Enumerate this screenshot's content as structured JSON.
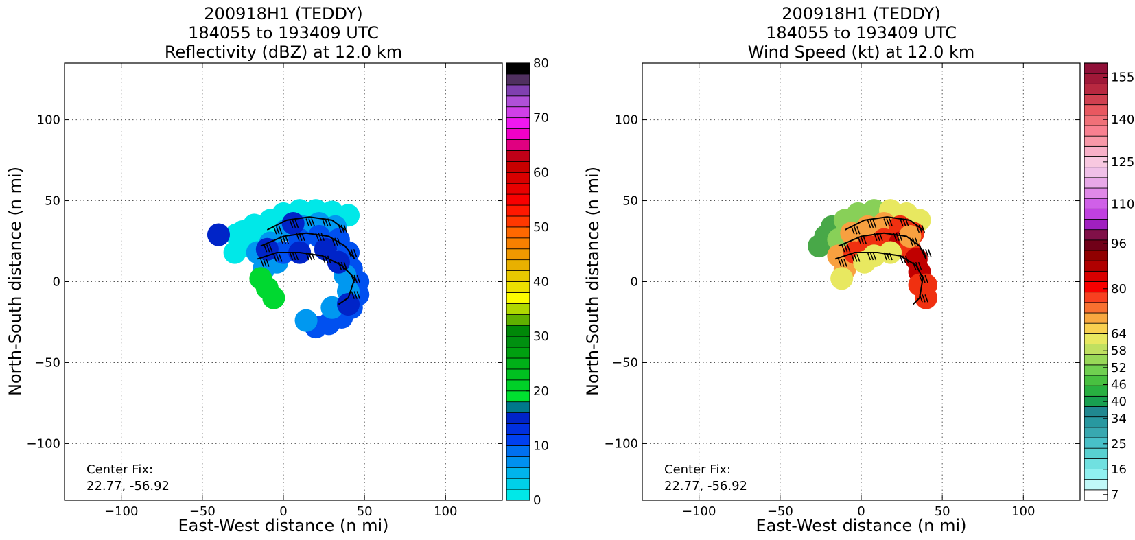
{
  "chart_data": [
    {
      "type": "heatmap",
      "title_lines": [
        "200918H1 (TEDDY)",
        "184055 to 193409 UTC",
        "Reflectivity (dBZ) at 12.0 km"
      ],
      "xlabel": "East-West distance (n mi)",
      "ylabel": "North-South distance (n mi)",
      "xlim": [
        -135,
        135
      ],
      "ylim": [
        -135,
        135
      ],
      "xticks": [
        -100,
        -50,
        0,
        50,
        100
      ],
      "yticks": [
        -100,
        -50,
        0,
        50,
        100
      ],
      "xtick_labels": [
        "−100",
        "−50",
        "0",
        "50",
        "100"
      ],
      "ytick_labels": [
        "−100",
        "−50",
        "0",
        "50",
        "100"
      ],
      "grid": true,
      "annotation_lines": [
        "Center Fix:",
        "22.77, -56.92"
      ],
      "colorbar": {
        "range": [
          0,
          80
        ],
        "tick_values": [
          0,
          10,
          20,
          30,
          40,
          50,
          60,
          70,
          80
        ],
        "tick_labels": [
          "0",
          "10",
          "20",
          "30",
          "40",
          "50",
          "60",
          "70",
          "80"
        ],
        "colors": [
          "#00e8e8",
          "#00d0e8",
          "#00b4ec",
          "#0090f0",
          "#0070f0",
          "#0040f0",
          "#0030e0",
          "#0024c8",
          "#00788c",
          "#00e030",
          "#00d028",
          "#00c020",
          "#00b018",
          "#00a010",
          "#009010",
          "#008808",
          "#60b000",
          "#b0d800",
          "#fcfc00",
          "#ece000",
          "#e8c800",
          "#e8b000",
          "#f09800",
          "#f88000",
          "#ff6800",
          "#ff3800",
          "#ff1800",
          "#f80000",
          "#e80000",
          "#d80000",
          "#c80000",
          "#c00018",
          "#e00080",
          "#f000c8",
          "#f018f0",
          "#d040e8",
          "#b050d8",
          "#8040b0",
          "#503060",
          "#000000"
        ]
      },
      "field": {
        "color_scale": [
          "#00e8e8",
          "#0098f0",
          "#0050f0",
          "#0024c8",
          "#00d830"
        ],
        "blobs": [
          {
            "x": -29,
            "y": 29,
            "value_index": 0
          },
          {
            "x": -25,
            "y": 31,
            "value_index": 0
          },
          {
            "x": -22,
            "y": 22,
            "value_index": 0
          },
          {
            "x": -18,
            "y": 35,
            "value_index": 0
          },
          {
            "x": -12,
            "y": 30,
            "value_index": 0
          },
          {
            "x": -8,
            "y": 38,
            "value_index": 0
          },
          {
            "x": 0,
            "y": 42,
            "value_index": 0
          },
          {
            "x": 10,
            "y": 44,
            "value_index": 0
          },
          {
            "x": 20,
            "y": 44,
            "value_index": 0
          },
          {
            "x": 30,
            "y": 43,
            "value_index": 0
          },
          {
            "x": 40,
            "y": 41,
            "value_index": 0
          },
          {
            "x": -30,
            "y": 18,
            "value_index": 0
          },
          {
            "x": -8,
            "y": 24,
            "value_index": 1
          },
          {
            "x": 2,
            "y": 32,
            "value_index": 1
          },
          {
            "x": 12,
            "y": 34,
            "value_index": 1
          },
          {
            "x": 22,
            "y": 36,
            "value_index": 1
          },
          {
            "x": 32,
            "y": 34,
            "value_index": 1
          },
          {
            "x": -16,
            "y": 18,
            "value_index": 1
          },
          {
            "x": -12,
            "y": 8,
            "value_index": 1
          },
          {
            "x": -4,
            "y": 12,
            "value_index": 1
          },
          {
            "x": 0,
            "y": 18,
            "value_index": 2
          },
          {
            "x": 10,
            "y": 26,
            "value_index": 2
          },
          {
            "x": 22,
            "y": 28,
            "value_index": 2
          },
          {
            "x": 34,
            "y": 26,
            "value_index": 2
          },
          {
            "x": 40,
            "y": 18,
            "value_index": 2
          },
          {
            "x": 42,
            "y": 8,
            "value_index": 2
          },
          {
            "x": 46,
            "y": 0,
            "value_index": 2
          },
          {
            "x": 46,
            "y": -8,
            "value_index": 2
          },
          {
            "x": 42,
            "y": -16,
            "value_index": 2
          },
          {
            "x": 36,
            "y": -22,
            "value_index": 2
          },
          {
            "x": 28,
            "y": -26,
            "value_index": 2
          },
          {
            "x": 20,
            "y": -28,
            "value_index": 2
          },
          {
            "x": 14,
            "y": -24,
            "value_index": 1
          },
          {
            "x": 40,
            "y": -6,
            "value_index": 1
          },
          {
            "x": 38,
            "y": 4,
            "value_index": 1
          },
          {
            "x": 30,
            "y": -16,
            "value_index": 1
          },
          {
            "x": 10,
            "y": 18,
            "value_index": 3
          },
          {
            "x": 26,
            "y": 20,
            "value_index": 3
          },
          {
            "x": 34,
            "y": 12,
            "value_index": 3
          },
          {
            "x": -10,
            "y": 20,
            "value_index": 3
          },
          {
            "x": 6,
            "y": 36,
            "value_index": 3
          },
          {
            "x": 40,
            "y": -14,
            "value_index": 3
          },
          {
            "x": -14,
            "y": 2,
            "value_index": 4
          },
          {
            "x": -10,
            "y": -4,
            "value_index": 4
          },
          {
            "x": -6,
            "y": -10,
            "value_index": 4
          },
          {
            "x": -40,
            "y": 29,
            "value_index": 3
          }
        ]
      },
      "barb_lines": [
        {
          "points": [
            [
              -16,
              14
            ],
            [
              -4,
              18
            ],
            [
              10,
              18
            ],
            [
              24,
              16
            ],
            [
              36,
              10
            ],
            [
              44,
              2
            ],
            [
              40,
              -10
            ],
            [
              34,
              -14
            ]
          ],
          "barbs": [
            [
              -14,
              14
            ],
            [
              -6,
              17
            ],
            [
              4,
              18
            ],
            [
              14,
              18
            ],
            [
              24,
              16
            ],
            [
              34,
              12
            ],
            [
              42,
              4
            ],
            [
              42,
              -6
            ]
          ]
        },
        {
          "points": [
            [
              -14,
              22
            ],
            [
              0,
              28
            ],
            [
              14,
              30
            ],
            [
              28,
              28
            ],
            [
              38,
              22
            ],
            [
              44,
              14
            ]
          ],
          "barbs": [
            [
              -12,
              23
            ],
            [
              -2,
              28
            ],
            [
              8,
              30
            ],
            [
              20,
              30
            ],
            [
              30,
              27
            ],
            [
              40,
              20
            ]
          ]
        },
        {
          "points": [
            [
              -10,
              32
            ],
            [
              2,
              38
            ],
            [
              16,
              40
            ],
            [
              30,
              38
            ],
            [
              38,
              32
            ]
          ],
          "barbs": [
            [
              -6,
              34
            ],
            [
              4,
              38
            ],
            [
              14,
              39
            ],
            [
              24,
              39
            ],
            [
              34,
              35
            ]
          ]
        }
      ]
    },
    {
      "type": "heatmap",
      "title_lines": [
        "200918H1 (TEDDY)",
        "184055 to 193409 UTC",
        "Wind Speed (kt) at 12.0 km"
      ],
      "xlabel": "East-West distance (n mi)",
      "ylabel": "North-South distance (n mi)",
      "xlim": [
        -135,
        135
      ],
      "ylim": [
        -135,
        135
      ],
      "xticks": [
        -100,
        -50,
        0,
        50,
        100
      ],
      "yticks": [
        -100,
        -50,
        0,
        50,
        100
      ],
      "xtick_labels": [
        "−100",
        "−50",
        "0",
        "50",
        "100"
      ],
      "ytick_labels": [
        "−100",
        "−50",
        "0",
        "50",
        "100"
      ],
      "grid": true,
      "annotation_lines": [
        "Center Fix:",
        "22.77, -56.92"
      ],
      "colorbar": {
        "range": [
          5,
          160
        ],
        "tick_values": [
          7,
          16,
          25,
          34,
          40,
          46,
          52,
          58,
          64,
          80,
          96,
          110,
          125,
          140,
          155
        ],
        "tick_labels": [
          "7",
          "16",
          "25",
          "34",
          "40",
          "46",
          "52",
          "58",
          "64",
          "80",
          "96",
          "110",
          "125",
          "140",
          "155"
        ],
        "colors": [
          "#ffffff",
          "#c0f8f8",
          "#90f0f0",
          "#70e0e0",
          "#58d0d0",
          "#48c0c8",
          "#38a8b0",
          "#2898a0",
          "#208890",
          "#18a050",
          "#28b040",
          "#48c040",
          "#70d050",
          "#98d858",
          "#c0e060",
          "#e8e860",
          "#f8d050",
          "#f8a840",
          "#f87030",
          "#f84020",
          "#f80000",
          "#d80000",
          "#b00000",
          "#900000",
          "#700018",
          "#801048",
          "#a020c0",
          "#c040e0",
          "#d060e8",
          "#e088e8",
          "#e8a8e8",
          "#f0c0e8",
          "#f8c8e0",
          "#f8b0c8",
          "#f898a8",
          "#f88090",
          "#f07078",
          "#e85860",
          "#d04050",
          "#b82840",
          "#a01838",
          "#901038"
        ]
      },
      "field": {
        "color_scale": [
          "#48a848",
          "#88d058",
          "#e8e860",
          "#f8a040",
          "#f03010",
          "#c00000"
        ],
        "blobs": [
          {
            "x": -26,
            "y": 22,
            "value_index": 0
          },
          {
            "x": -22,
            "y": 28,
            "value_index": 0
          },
          {
            "x": -18,
            "y": 34,
            "value_index": 0
          },
          {
            "x": -10,
            "y": 38,
            "value_index": 1
          },
          {
            "x": -2,
            "y": 42,
            "value_index": 1
          },
          {
            "x": 8,
            "y": 44,
            "value_index": 1
          },
          {
            "x": 18,
            "y": 44,
            "value_index": 2
          },
          {
            "x": 28,
            "y": 42,
            "value_index": 2
          },
          {
            "x": 36,
            "y": 38,
            "value_index": 2
          },
          {
            "x": -14,
            "y": 26,
            "value_index": 1
          },
          {
            "x": -6,
            "y": 30,
            "value_index": 3
          },
          {
            "x": 4,
            "y": 34,
            "value_index": 3
          },
          {
            "x": 14,
            "y": 36,
            "value_index": 3
          },
          {
            "x": 24,
            "y": 34,
            "value_index": 4
          },
          {
            "x": 32,
            "y": 30,
            "value_index": 4
          },
          {
            "x": -14,
            "y": 16,
            "value_index": 3
          },
          {
            "x": -10,
            "y": 8,
            "value_index": 3
          },
          {
            "x": -12,
            "y": 2,
            "value_index": 2
          },
          {
            "x": -4,
            "y": 18,
            "value_index": 4
          },
          {
            "x": 4,
            "y": 22,
            "value_index": 4
          },
          {
            "x": 14,
            "y": 26,
            "value_index": 4
          },
          {
            "x": 24,
            "y": 24,
            "value_index": 5
          },
          {
            "x": 30,
            "y": 20,
            "value_index": 4
          },
          {
            "x": 34,
            "y": 14,
            "value_index": 5
          },
          {
            "x": 36,
            "y": 6,
            "value_index": 5
          },
          {
            "x": 36,
            "y": -2,
            "value_index": 4
          },
          {
            "x": 8,
            "y": 16,
            "value_index": 2
          },
          {
            "x": 18,
            "y": 18,
            "value_index": 2
          },
          {
            "x": 2,
            "y": 12,
            "value_index": 2
          },
          {
            "x": 30,
            "y": 28,
            "value_index": 3
          },
          {
            "x": 40,
            "y": -2,
            "value_index": 4
          },
          {
            "x": 40,
            "y": -10,
            "value_index": 4
          }
        ]
      },
      "barb_lines": [
        {
          "points": [
            [
              -16,
              14
            ],
            [
              -4,
              18
            ],
            [
              10,
              18
            ],
            [
              24,
              16
            ],
            [
              34,
              10
            ],
            [
              38,
              2
            ],
            [
              36,
              -10
            ],
            [
              32,
              -14
            ]
          ],
          "barbs": [
            [
              -14,
              14
            ],
            [
              -6,
              17
            ],
            [
              4,
              18
            ],
            [
              14,
              18
            ],
            [
              24,
              16
            ],
            [
              32,
              12
            ],
            [
              36,
              4
            ],
            [
              36,
              -8
            ]
          ]
        },
        {
          "points": [
            [
              -14,
              22
            ],
            [
              0,
              28
            ],
            [
              14,
              30
            ],
            [
              28,
              28
            ],
            [
              36,
              22
            ],
            [
              40,
              14
            ]
          ],
          "barbs": [
            [
              -12,
              23
            ],
            [
              -2,
              28
            ],
            [
              8,
              30
            ],
            [
              20,
              30
            ],
            [
              30,
              27
            ],
            [
              38,
              20
            ]
          ]
        },
        {
          "points": [
            [
              -10,
              32
            ],
            [
              2,
              38
            ],
            [
              16,
              40
            ],
            [
              30,
              38
            ],
            [
              38,
              32
            ]
          ],
          "barbs": [
            [
              -6,
              34
            ],
            [
              4,
              38
            ],
            [
              14,
              39
            ],
            [
              24,
              39
            ],
            [
              34,
              35
            ]
          ]
        }
      ]
    }
  ]
}
